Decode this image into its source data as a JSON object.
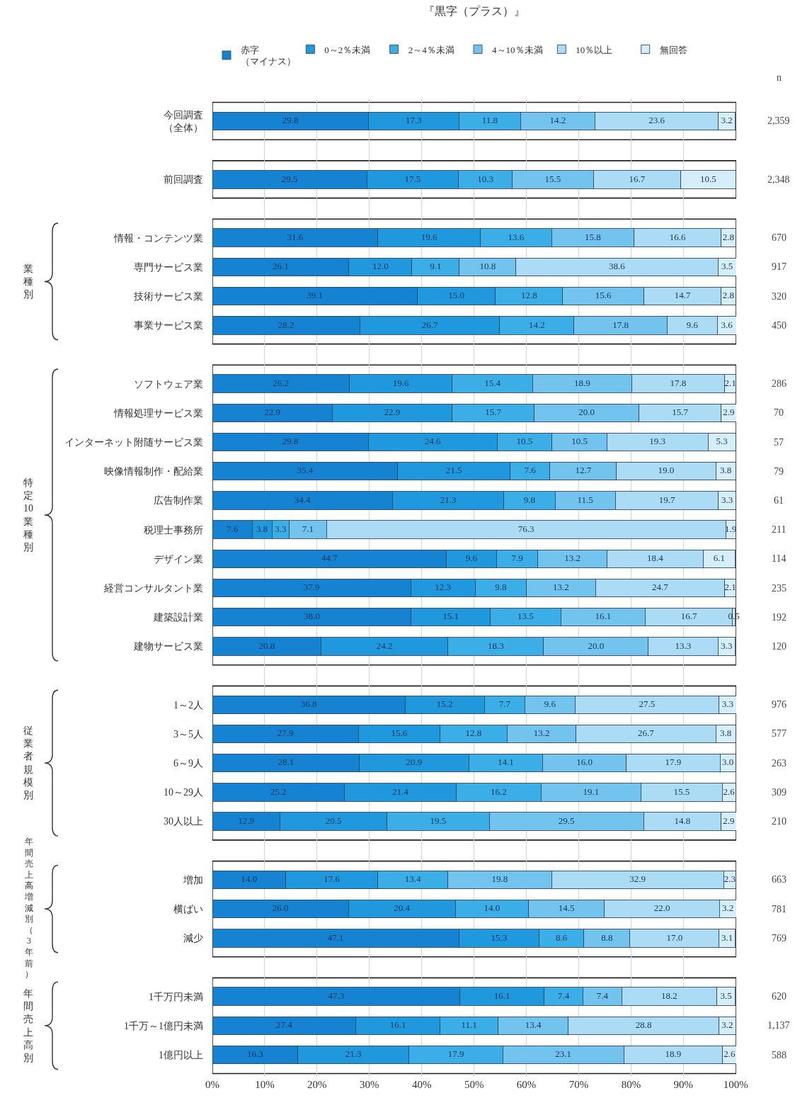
{
  "chart_data": {
    "type": "bar",
    "orientation": "horizontal",
    "stacked": true,
    "categories": [
      "今回調査（全体）",
      null,
      "前回調査",
      null,
      "情報・コンテンツ業",
      "専門サービス業",
      "技術サービス業",
      "事業サービス業",
      null,
      "ソフトウェア業",
      "情報処理サービス業",
      "インターネット附随サービス業",
      "映像情報制作・配給業",
      "広告制作業",
      "税理士事務所",
      "デザイン業",
      "経営コンサルタント業",
      "建築設計業",
      "建物サービス業",
      null,
      "1～2人",
      "3～5人",
      "6～9人",
      "10～29人",
      "30人以上",
      null,
      "増加",
      "横ばい",
      "減少",
      null,
      "1千万円未満",
      "1千万～1億円未満",
      "1億円以上"
    ],
    "y2_categories": [
      "2,359",
      null,
      "2,348",
      null,
      "670",
      "917",
      "320",
      "450",
      null,
      "286",
      "70",
      "57",
      "79",
      "61",
      "211",
      "114",
      "235",
      "192",
      "120",
      null,
      "976",
      "577",
      "263",
      "309",
      "210",
      null,
      "663",
      "781",
      "769",
      null,
      "620",
      "1,137",
      "588"
    ],
    "series": [
      {
        "name": "赤字（マイナス）",
        "color": "#1582d2",
        "values": [
          29.8,
          null,
          29.5,
          null,
          31.6,
          26.1,
          39.1,
          28.2,
          null,
          26.2,
          22.9,
          29.8,
          35.4,
          34.4,
          7.6,
          44.7,
          37.9,
          38.0,
          20.8,
          null,
          36.8,
          27.9,
          28.1,
          25.2,
          12.9,
          null,
          14.0,
          26.0,
          47.1,
          null,
          47.3,
          27.4,
          16.3
        ],
        "value_labels": [
          "29.8",
          null,
          "29.5",
          null,
          "31.6",
          "26.1",
          "39.1",
          "28.2",
          null,
          "26.2",
          "22.9",
          "29.8",
          "35.4",
          "34.4",
          "7.6",
          "44.7",
          "37.9",
          "38.0",
          "20.8",
          null,
          "36.8",
          "27.9",
          "28.1",
          "25.2",
          "12.9",
          null,
          "14.0",
          "26.0",
          "47.1",
          null,
          "47.3",
          "27.4",
          "16.3"
        ]
      },
      {
        "name": "0～2％未満",
        "color": "#2098de",
        "values": [
          17.3,
          null,
          17.5,
          null,
          19.6,
          12.0,
          15.0,
          26.7,
          null,
          19.6,
          22.9,
          24.6,
          21.5,
          21.3,
          3.8,
          9.6,
          12.3,
          15.1,
          24.2,
          null,
          15.2,
          15.6,
          20.9,
          21.4,
          20.5,
          null,
          17.6,
          20.4,
          15.3,
          null,
          16.1,
          16.1,
          21.3
        ],
        "value_labels": [
          "17.3",
          null,
          "17.5",
          null,
          "19.6",
          "12.0",
          "15.0",
          "26.7",
          null,
          "19.6",
          "22.9",
          "24.6",
          "21.5",
          "21.3",
          "3.8",
          "9.6",
          "12.3",
          "15.1",
          "24.2",
          null,
          "15.2",
          "15.6",
          "20.9",
          "21.4",
          "20.5",
          null,
          "17.6",
          "20.4",
          "15.3",
          null,
          "16.1",
          "16.1",
          "21.3"
        ]
      },
      {
        "name": "2～4％未満",
        "color": "#3caee7",
        "values": [
          11.8,
          null,
          10.3,
          null,
          13.6,
          9.1,
          12.8,
          14.2,
          null,
          15.4,
          15.7,
          10.5,
          7.6,
          9.8,
          3.3,
          7.9,
          9.8,
          13.5,
          18.3,
          null,
          7.7,
          12.8,
          14.1,
          16.2,
          19.5,
          null,
          13.4,
          14.0,
          8.6,
          null,
          7.4,
          11.1,
          17.9
        ],
        "value_labels": [
          "11.8",
          null,
          "10.3",
          null,
          "13.6",
          "9.1",
          "12.8",
          "14.2",
          null,
          "15.4",
          "15.7",
          "10.5",
          "7.6",
          "9.8",
          "3.3",
          "7.9",
          "9.8",
          "13.5",
          "18.3",
          null,
          "7.7",
          "12.8",
          "14.1",
          "16.2",
          "19.5",
          null,
          "13.4",
          "14.0",
          "8.6",
          null,
          "7.4",
          "11.1",
          "17.9"
        ]
      },
      {
        "name": "4～10％未満",
        "color": "#72c4ee",
        "values": [
          14.2,
          null,
          15.5,
          null,
          15.8,
          10.8,
          15.6,
          17.8,
          null,
          18.9,
          20.0,
          10.5,
          12.7,
          11.5,
          7.1,
          13.2,
          13.2,
          16.1,
          20.0,
          null,
          9.6,
          13.2,
          16.0,
          19.1,
          29.5,
          null,
          19.8,
          14.5,
          8.8,
          null,
          7.4,
          13.4,
          23.1
        ],
        "value_labels": [
          "14.2",
          null,
          "15.5",
          null,
          "15.8",
          "10.8",
          "15.6",
          "17.8",
          null,
          "18.9",
          "20.0",
          "10.5",
          "12.7",
          "11.5",
          "7.1",
          "13.2",
          "13.2",
          "16.1",
          "20.0",
          null,
          "9.6",
          "13.2",
          "16.0",
          "19.1",
          "29.5",
          null,
          "19.8",
          "14.5",
          "8.8",
          null,
          "7.4",
          "13.4",
          "23.1"
        ]
      },
      {
        "name": "10％以上",
        "color": "#acdcf5",
        "values": [
          23.6,
          null,
          16.7,
          null,
          16.6,
          38.6,
          14.7,
          9.6,
          null,
          17.8,
          15.7,
          19.3,
          19.0,
          19.7,
          76.3,
          18.4,
          24.7,
          16.7,
          13.3,
          null,
          27.5,
          26.7,
          17.9,
          15.5,
          14.8,
          null,
          32.9,
          22.0,
          17.0,
          null,
          18.2,
          28.8,
          18.9
        ],
        "value_labels": [
          "23.6",
          null,
          "16.7",
          null,
          "16.6",
          "38.6",
          "14.7",
          "9.6",
          null,
          "17.8",
          "15.7",
          "19.3",
          "19.0",
          "19.7",
          "76.3",
          "18.4",
          "24.7",
          "16.7",
          "13.3",
          null,
          "27.5",
          "26.7",
          "17.9",
          "15.5",
          "14.8",
          null,
          "32.9",
          "22.0",
          "17.0",
          null,
          "18.2",
          "28.8",
          "18.9"
        ]
      },
      {
        "name": "無回答",
        "color": "#d6eefa",
        "values": [
          3.2,
          null,
          10.5,
          null,
          2.8,
          3.5,
          2.8,
          3.6,
          null,
          2.1,
          2.9,
          5.3,
          3.8,
          3.3,
          1.9,
          6.1,
          2.1,
          0.5,
          3.3,
          null,
          3.3,
          3.8,
          3.0,
          2.6,
          2.9,
          null,
          2.3,
          3.2,
          3.1,
          null,
          3.5,
          3.2,
          2.6
        ],
        "value_labels": [
          "3.2",
          null,
          "10.5",
          null,
          "2.8",
          "3.5",
          "2.8",
          "3.6",
          null,
          "2.1",
          "2.9",
          "5.3",
          "3.8",
          "3.3",
          "1.9",
          "6.1",
          "2.1",
          "0.5",
          "3.3",
          null,
          "3.3",
          "3.8",
          "3.0",
          "2.6",
          "2.9",
          null,
          "2.3",
          "3.2",
          "3.1",
          null,
          "3.5",
          "3.2",
          "2.6"
        ]
      }
    ],
    "xlim": [
      0,
      100.1
    ],
    "xticks": [
      {
        "value": 0,
        "label": "0%"
      },
      {
        "value": 10,
        "label": "10%"
      },
      {
        "value": 20,
        "label": "20%"
      },
      {
        "value": 30,
        "label": "30%"
      },
      {
        "value": 40,
        "label": "40%"
      },
      {
        "value": 50,
        "label": "50%"
      },
      {
        "value": 60,
        "label": "60%"
      },
      {
        "value": 70,
        "label": "70%"
      },
      {
        "value": 80,
        "label": "80%"
      },
      {
        "value": 90,
        "label": "90%"
      },
      {
        "value": 100,
        "label": "100%"
      }
    ],
    "grid": "x",
    "legend": "top",
    "y2label": "n",
    "annotations": [
      "『黒字（プラス）』",
      "業種別",
      "特定10業種別",
      "従業者規模別",
      "年間売上高増減別（3年前）",
      "年間売上高別"
    ]
  }
}
